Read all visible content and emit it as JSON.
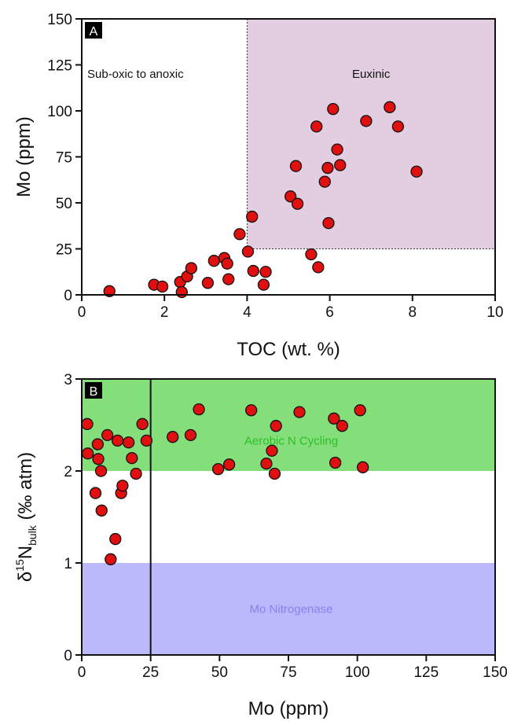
{
  "chart_data": [
    {
      "panel": "A",
      "type": "scatter",
      "xlabel": "TOC (wt. %)",
      "ylabel": "Mo (ppm)",
      "xlim": [
        0,
        10
      ],
      "ylim": [
        0,
        150
      ],
      "xticks": [
        "0",
        "2",
        "4",
        "6",
        "8",
        "10"
      ],
      "yticks": [
        "0",
        "25",
        "50",
        "75",
        "100",
        "125",
        "150"
      ],
      "grid": false,
      "regions": [
        {
          "label": "Sub-oxic to anoxic",
          "color": "#ffffff"
        },
        {
          "label": "Euxinic",
          "x_range": [
            4,
            10
          ],
          "y_range": [
            25,
            150
          ],
          "color": "#e2cde1"
        }
      ],
      "marker_color": "#e01010",
      "points": [
        {
          "x": 0.67,
          "y": 2
        },
        {
          "x": 1.75,
          "y": 5.5
        },
        {
          "x": 1.95,
          "y": 4.5
        },
        {
          "x": 2.38,
          "y": 7
        },
        {
          "x": 2.42,
          "y": 1.5
        },
        {
          "x": 2.55,
          "y": 10
        },
        {
          "x": 2.65,
          "y": 14.5
        },
        {
          "x": 3.05,
          "y": 6.5
        },
        {
          "x": 3.2,
          "y": 18.5
        },
        {
          "x": 3.45,
          "y": 20
        },
        {
          "x": 3.52,
          "y": 17
        },
        {
          "x": 3.55,
          "y": 8.5
        },
        {
          "x": 3.82,
          "y": 33
        },
        {
          "x": 4.02,
          "y": 23.5
        },
        {
          "x": 4.12,
          "y": 42.5
        },
        {
          "x": 4.15,
          "y": 13
        },
        {
          "x": 4.4,
          "y": 5.5
        },
        {
          "x": 4.45,
          "y": 12.5
        },
        {
          "x": 5.05,
          "y": 53.5
        },
        {
          "x": 5.18,
          "y": 70
        },
        {
          "x": 5.22,
          "y": 49.5
        },
        {
          "x": 5.55,
          "y": 22
        },
        {
          "x": 5.68,
          "y": 91.5
        },
        {
          "x": 5.72,
          "y": 15
        },
        {
          "x": 5.88,
          "y": 61.5
        },
        {
          "x": 5.95,
          "y": 69
        },
        {
          "x": 5.97,
          "y": 39
        },
        {
          "x": 6.08,
          "y": 101
        },
        {
          "x": 6.18,
          "y": 79
        },
        {
          "x": 6.25,
          "y": 70.5
        },
        {
          "x": 6.88,
          "y": 94.5
        },
        {
          "x": 7.45,
          "y": 102
        },
        {
          "x": 7.65,
          "y": 91.5
        },
        {
          "x": 8.1,
          "y": 67
        }
      ]
    },
    {
      "panel": "B",
      "type": "scatter",
      "xlabel": "Mo (ppm)",
      "ylabel": {
        "prefix": "δ",
        "sup": "15",
        "main": "N",
        "sub": "bulk",
        "suffix": " (‰ atm)"
      },
      "xlim": [
        0,
        150
      ],
      "ylim": [
        0,
        3
      ],
      "xticks": [
        "0",
        "25",
        "50",
        "75",
        "100",
        "125",
        "150"
      ],
      "yticks": [
        "0",
        "1",
        "2",
        "3"
      ],
      "grid": false,
      "regions": [
        {
          "label": "Aerobic N Cycling",
          "y_range": [
            2,
            3
          ],
          "color": "#84df7a",
          "text_color": "#2ebd2a"
        },
        {
          "label": "Mo Nitrogenase",
          "y_range": [
            0,
            1
          ],
          "color": "#bcb8fc",
          "text_color": "#8a82ea"
        }
      ],
      "reference_line_x": 25,
      "marker_color": "#e01010",
      "points": [
        {
          "x": 2,
          "y": 2.51
        },
        {
          "x": 2.2,
          "y": 2.19
        },
        {
          "x": 5,
          "y": 1.76
        },
        {
          "x": 5.8,
          "y": 2.29
        },
        {
          "x": 6,
          "y": 2.13
        },
        {
          "x": 7,
          "y": 2.0
        },
        {
          "x": 7.2,
          "y": 1.57
        },
        {
          "x": 9.3,
          "y": 2.39
        },
        {
          "x": 10.5,
          "y": 1.04
        },
        {
          "x": 12.2,
          "y": 1.26
        },
        {
          "x": 13,
          "y": 2.33
        },
        {
          "x": 14.3,
          "y": 1.76
        },
        {
          "x": 14.8,
          "y": 1.84
        },
        {
          "x": 17,
          "y": 2.31
        },
        {
          "x": 18.2,
          "y": 2.14
        },
        {
          "x": 19.7,
          "y": 1.97
        },
        {
          "x": 22,
          "y": 2.51
        },
        {
          "x": 23.5,
          "y": 2.33
        },
        {
          "x": 33,
          "y": 2.37
        },
        {
          "x": 39.5,
          "y": 2.39
        },
        {
          "x": 42.5,
          "y": 2.67
        },
        {
          "x": 49.5,
          "y": 2.02
        },
        {
          "x": 53.5,
          "y": 2.07
        },
        {
          "x": 61.5,
          "y": 2.66
        },
        {
          "x": 67,
          "y": 2.08
        },
        {
          "x": 69,
          "y": 2.22
        },
        {
          "x": 70,
          "y": 1.97
        },
        {
          "x": 70.5,
          "y": 2.49
        },
        {
          "x": 79,
          "y": 2.64
        },
        {
          "x": 91.5,
          "y": 2.57
        },
        {
          "x": 92,
          "y": 2.09
        },
        {
          "x": 94.5,
          "y": 2.49
        },
        {
          "x": 101,
          "y": 2.66
        },
        {
          "x": 102,
          "y": 2.04
        }
      ]
    }
  ]
}
